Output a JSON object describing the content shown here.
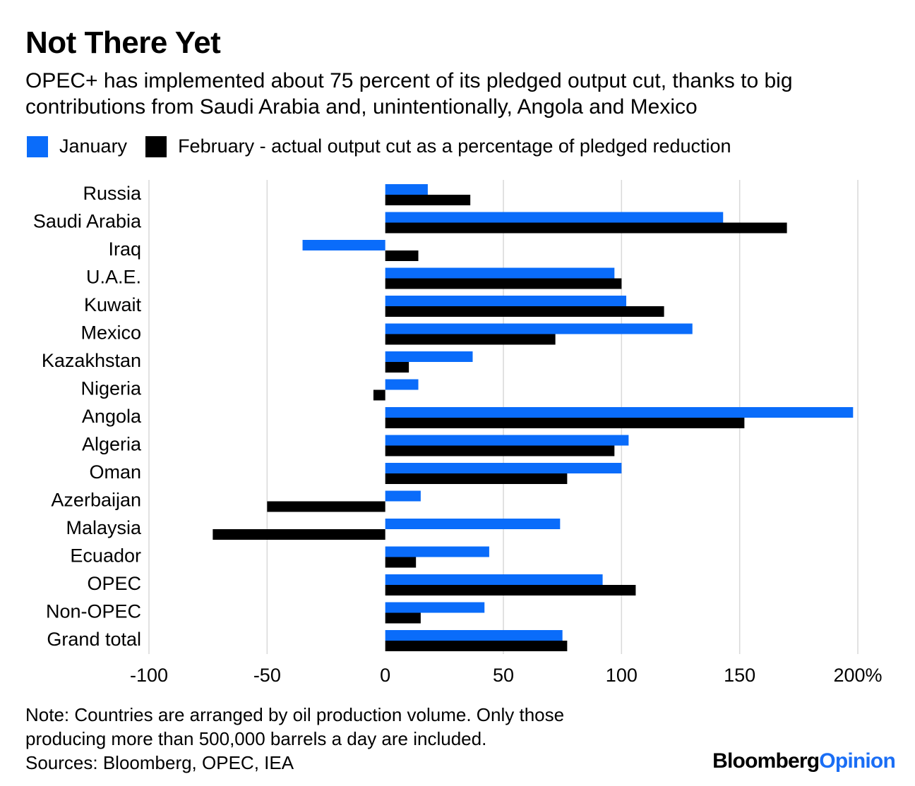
{
  "title": "Not There Yet",
  "subtitle": "OPEC+ has implemented about 75 percent of its pledged output cut, thanks to big contributions from Saudi Arabia and, unintentionally, Angola and Mexico",
  "legend": {
    "january": "January",
    "february": "February - actual output cut as a percentage of pledged reduction"
  },
  "colors": {
    "january": "#0a6cfa",
    "february": "#000000",
    "grid": "#d9d9d9"
  },
  "chart_data": {
    "type": "bar",
    "orientation": "horizontal",
    "categories": [
      "Russia",
      "Saudi Arabia",
      "Iraq",
      "U.A.E.",
      "Kuwait",
      "Mexico",
      "Kazakhstan",
      "Nigeria",
      "Angola",
      "Algeria",
      "Oman",
      "Azerbaijan",
      "Malaysia",
      "Ecuador",
      "OPEC",
      "Non-OPEC",
      "Grand total"
    ],
    "series": [
      {
        "name": "January",
        "values": [
          18,
          143,
          -35,
          97,
          102,
          130,
          37,
          14,
          198,
          103,
          100,
          15,
          74,
          44,
          92,
          42,
          75
        ]
      },
      {
        "name": "February",
        "values": [
          36,
          170,
          14,
          100,
          118,
          72,
          10,
          -5,
          152,
          97,
          77,
          -50,
          -73,
          13,
          106,
          15,
          77
        ]
      }
    ],
    "xlim": [
      -100,
      200
    ],
    "ticks": [
      -100,
      -50,
      0,
      50,
      100,
      150,
      200
    ],
    "tick_labels": [
      "-100",
      "-50",
      "0",
      "50",
      "100",
      "150",
      "200%"
    ],
    "grid": true
  },
  "note": {
    "line1": "Note: Countries are arranged by oil production volume. Only those",
    "line2": "producing more than 500,000 barrels a day are included.",
    "line3": "Sources: Bloomberg, OPEC, IEA"
  },
  "brand": {
    "part1": "Bloomberg",
    "part2": "Opinion"
  }
}
